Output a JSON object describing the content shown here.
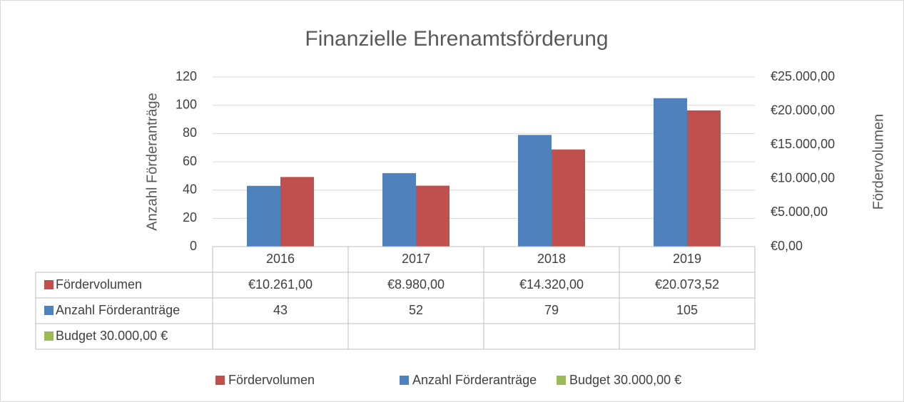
{
  "chart_data": {
    "type": "bar",
    "title": "Finanzielle Ehrenamtsförderung",
    "y_label": "Anzahl Förderanträge",
    "y2_label": "Fördervolumen",
    "categories": [
      "2016",
      "2017",
      "2018",
      "2019"
    ],
    "series": [
      {
        "name": "Fördervolumen",
        "color": "#c0504d",
        "axis": "y2",
        "values": [
          10261,
          8980,
          14320,
          20073.52
        ],
        "value_labels": [
          "€10.261,00",
          "€8.980,00",
          "€14.320,00",
          "€20.073,52"
        ]
      },
      {
        "name": "Anzahl Förderanträge",
        "color": "#4f81bd",
        "axis": "y",
        "values": [
          43,
          52,
          79,
          105
        ]
      },
      {
        "name": "Budget 30.000,00 €",
        "color": "#9bbb59",
        "axis": "y",
        "values": [
          null,
          null,
          null,
          null
        ]
      }
    ],
    "ylim": [
      0,
      120
    ],
    "yticks": [
      0,
      20,
      40,
      60,
      80,
      100,
      120
    ],
    "y2lim": [
      0,
      25000
    ],
    "y2ticks": [
      {
        "value": 0,
        "label": "€0,00"
      },
      {
        "value": 5000,
        "label": "€5.000,00"
      },
      {
        "value": 10000,
        "label": "€10.000,00"
      },
      {
        "value": 15000,
        "label": "€15.000,00"
      },
      {
        "value": 20000,
        "label": "€20.000,00"
      },
      {
        "value": 25000,
        "label": "€25.000,00"
      }
    ],
    "grid": true,
    "data_table": true,
    "legend": "bottom"
  }
}
